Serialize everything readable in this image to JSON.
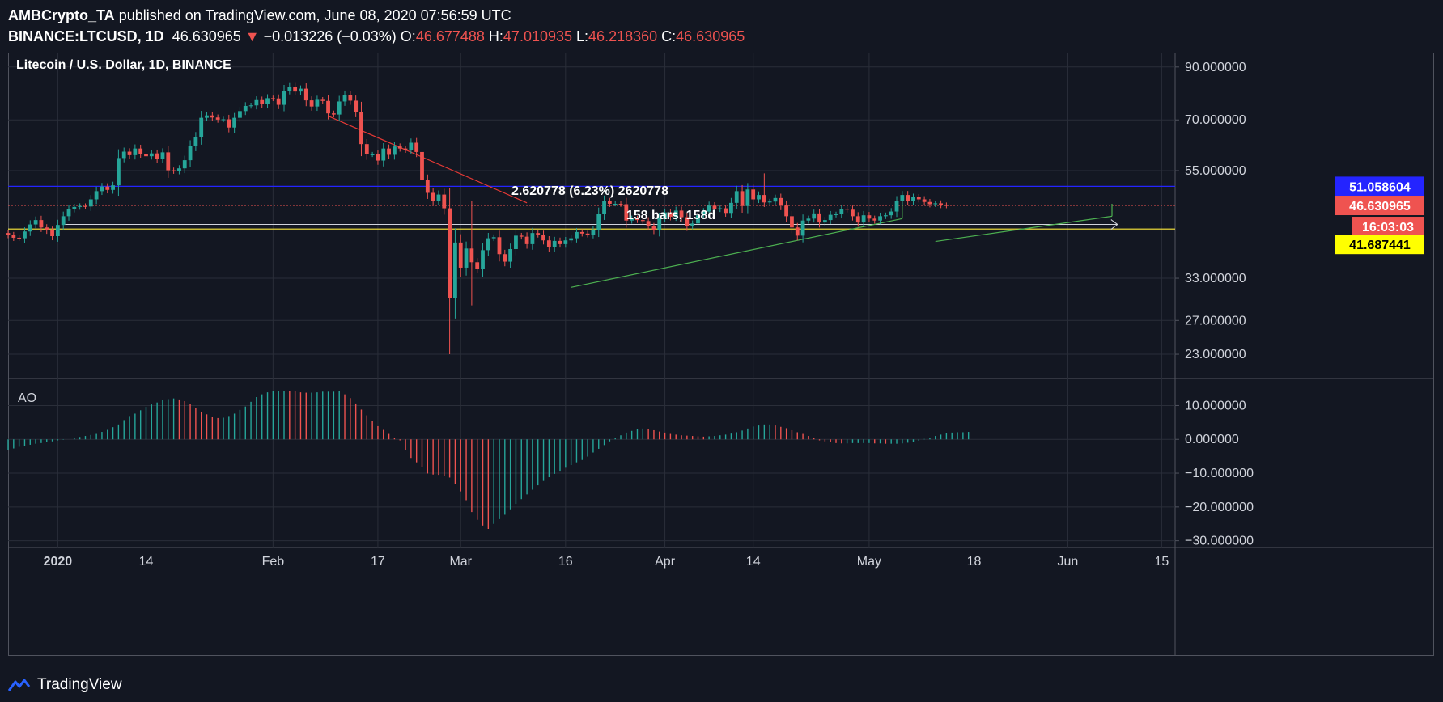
{
  "header": {
    "author": "AMBCrypto_TA",
    "published": "published on TradingView.com, June 08, 2020 07:56:59 UTC",
    "symbol": "BINANCE:LTCUSD, 1D",
    "last": "46.630965",
    "arrow": "▼",
    "change": "−0.013226 (−0.03%)",
    "o_label": "O:",
    "o_value": "46.677488",
    "h_label": "H:",
    "h_value": "47.010935",
    "l_label": "L:",
    "l_value": "46.218360",
    "c_label": "C:",
    "c_value": "46.630965"
  },
  "pane_title": "Litecoin / U.S. Dollar, 1D, BINANCE",
  "ao_label": "AO",
  "measure": {
    "line1": "2.620778 (6.23%) 2620778",
    "line2": "158 bars, 158d"
  },
  "price_badges": {
    "blue": "51.058604",
    "red": "46.630965",
    "countdown": "16:03:03",
    "yellow": "41.687441"
  },
  "footer": {
    "brand": "TradingView"
  },
  "colors": {
    "up": "#26a69a",
    "down": "#ef5350",
    "bg": "#131722",
    "grid": "#2a2e39",
    "blue_line": "#2424ff",
    "yellow_line": "#ffeb3b",
    "trend_green": "#4caf50",
    "trend_red": "#e53935"
  },
  "chart_data": [
    {
      "type": "candlestick",
      "title": "Litecoin / U.S. Dollar, 1D, BINANCE",
      "x_ticks": [
        "2020",
        "14",
        "Feb",
        "17",
        "Mar",
        "16",
        "Apr",
        "14",
        "May",
        "18",
        "Jun",
        "15"
      ],
      "y_ticks": [
        "90.000000",
        "70.000000",
        "55.000000",
        "33.000000",
        "27.000000",
        "23.000000"
      ],
      "y_scale": "log",
      "ylim": [
        20.5,
        96
      ],
      "levels": {
        "resistance": 51.058604,
        "last": 46.630965,
        "support": 41.687441,
        "measure_start": 42.6
      },
      "closes": [
        40.5,
        40.0,
        39.9,
        41.2,
        42.6,
        43.5,
        42.0,
        41.4,
        40.3,
        42.5,
        44.3,
        45.8,
        46.3,
        46.5,
        46.4,
        48.0,
        49.9,
        51.0,
        50.2,
        51.3,
        58.4,
        60.2,
        59.2,
        61.1,
        59.6,
        58.9,
        59.7,
        58.2,
        60.0,
        55.1,
        54.9,
        55.6,
        57.8,
        61.8,
        64.6,
        70.7,
        71.5,
        70.8,
        70.1,
        70.2,
        67.5,
        70.7,
        73.0,
        74.8,
        75.0,
        76.9,
        75.4,
        77.6,
        77.5,
        75.2,
        80.4,
        82.0,
        80.1,
        81.2,
        76.8,
        74.6,
        77.0,
        76.6,
        72.2,
        71.8,
        76.4,
        78.9,
        76.7,
        72.8,
        62.4,
        59.4,
        59.4,
        57.7,
        61.1,
        59.3,
        61.7,
        61.1,
        60.7,
        62.8,
        60.1,
        52.6,
        49.5,
        47.6,
        49.1,
        46.0,
        30.0,
        39.1,
        34.7,
        38.0,
        35.6,
        34.5,
        37.7,
        39.9,
        40.1,
        37.0,
        35.7,
        37.9,
        40.4,
        40.2,
        38.8,
        40.9,
        40.6,
        39.5,
        38.2,
        39.4,
        38.8,
        39.5,
        39.9,
        41.1,
        40.8,
        40.6,
        41.5,
        44.8,
        47.6,
        47.0,
        47.0,
        46.9,
        43.4,
        43.8,
        43.5,
        43.3,
        42.2,
        41.4,
        43.9,
        45.1,
        44.2,
        45.5,
        44.1,
        42.3,
        42.8,
        44.5,
        45.3,
        46.6,
        45.8,
        46.0,
        45.0,
        47.2,
        49.9,
        46.5,
        50.3,
        48.0,
        49.0,
        47.3,
        47.5,
        48.3,
        46.6,
        44.3,
        42.0,
        40.4,
        43.4,
        43.8,
        44.9,
        43.0,
        43.5,
        44.6,
        44.7,
        45.9,
        45.7,
        44.3,
        43.0,
        44.5,
        43.8,
        43.4,
        44.3,
        44.5,
        45.3,
        47.6,
        49.0,
        47.6,
        48.5,
        48.0,
        47.4,
        46.9,
        47.1,
        46.7,
        46.6
      ]
    },
    {
      "type": "bar",
      "title": "AO",
      "y_ticks": [
        "10.000000",
        "0.000000",
        "−10.000000",
        "−20.000000",
        "−30.000000"
      ],
      "ylim": [
        -32,
        18
      ],
      "values": [
        -3.1,
        -2.7,
        -2.2,
        -1.9,
        -1.6,
        -1.3,
        -1.1,
        -0.9,
        -0.6,
        -0.3,
        -0.1,
        -0.0,
        0.4,
        0.7,
        1.0,
        1.3,
        1.6,
        2.2,
        2.8,
        3.6,
        4.4,
        5.7,
        6.9,
        7.6,
        8.6,
        9.6,
        10.3,
        10.9,
        11.6,
        11.9,
        12.1,
        11.8,
        11.3,
        10.4,
        9.2,
        8.2,
        7.4,
        6.7,
        6.3,
        6.4,
        6.9,
        7.6,
        8.7,
        9.7,
        11.1,
        12.5,
        13.3,
        13.9,
        14.2,
        14.3,
        14.4,
        14.3,
        14.2,
        13.9,
        13.8,
        13.8,
        13.9,
        14.1,
        14.1,
        14.1,
        14.2,
        13.3,
        12.2,
        10.6,
        8.8,
        7.1,
        5.5,
        3.9,
        2.8,
        1.6,
        0.3,
        -0.3,
        -3.1,
        -5.5,
        -6.8,
        -8.3,
        -10.1,
        -10.4,
        -10.5,
        -10.9,
        -11.3,
        -13.3,
        -15.4,
        -18.0,
        -21.5,
        -23.8,
        -25.5,
        -26.5,
        -25.0,
        -23.6,
        -22.3,
        -20.7,
        -19.1,
        -17.7,
        -16.3,
        -14.9,
        -13.6,
        -12.3,
        -11.2,
        -10.2,
        -9.3,
        -8.4,
        -7.6,
        -6.8,
        -6.1,
        -5.1,
        -3.9,
        -2.8,
        -1.7,
        -0.6,
        0.4,
        1.2,
        2.0,
        2.5,
        3.0,
        3.2,
        3.0,
        2.7,
        2.3,
        2.0,
        1.6,
        1.4,
        1.2,
        1.1,
        1.0,
        0.9,
        0.8,
        0.9,
        1.0,
        1.2,
        1.4,
        1.7,
        2.1,
        2.6,
        3.2,
        3.8,
        4.1,
        4.4,
        4.4,
        4.1,
        3.7,
        3.3,
        2.7,
        2.1,
        1.6,
        1.0,
        0.5,
        -0.3,
        -0.6,
        -0.9,
        -1.1,
        -1.2,
        -1.2,
        -1.1,
        -1.1,
        -1.1,
        -1.1,
        -1.2,
        -1.2,
        -1.3,
        -1.3,
        -1.3,
        -1.2,
        -1.0,
        -0.7,
        -0.4,
        0.1,
        0.5,
        1.0,
        1.4,
        1.8,
        2.0,
        2.1,
        2.1,
        2.2
      ]
    }
  ]
}
